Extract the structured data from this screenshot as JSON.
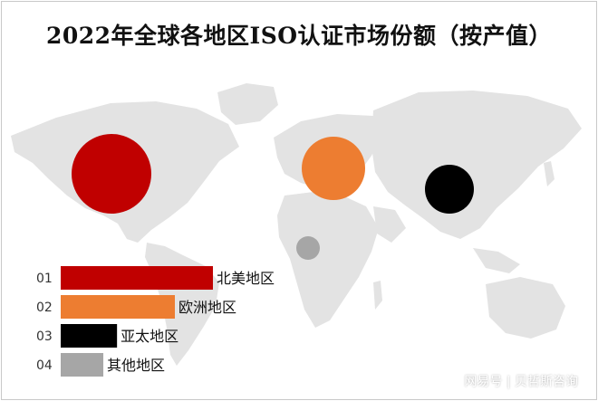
{
  "title": "2022年全球各地区ISO认证市场份额（按产值）",
  "watermark": "网易号 | 贝哲斯咨询",
  "chart_data": {
    "type": "bar",
    "title": "2022年全球各地区ISO认证市场份额（按产值）",
    "categories": [
      "北美地区",
      "欧洲地区",
      "亚太地区",
      "其他地区"
    ],
    "ranks": [
      "01",
      "02",
      "03",
      "04"
    ],
    "values": [
      100,
      75,
      37,
      28
    ],
    "value_scale": "relative (no values printed)",
    "colors": [
      "#c00000",
      "#ed7d31",
      "#000000",
      "#a6a6a6"
    ],
    "map_bubbles": [
      {
        "region": "北美地区",
        "color": "#c00000"
      },
      {
        "region": "欧洲地区",
        "color": "#ed7d31"
      },
      {
        "region": "亚太地区",
        "color": "#000000"
      },
      {
        "region": "其他地区",
        "color": "#a6a6a6"
      }
    ]
  }
}
